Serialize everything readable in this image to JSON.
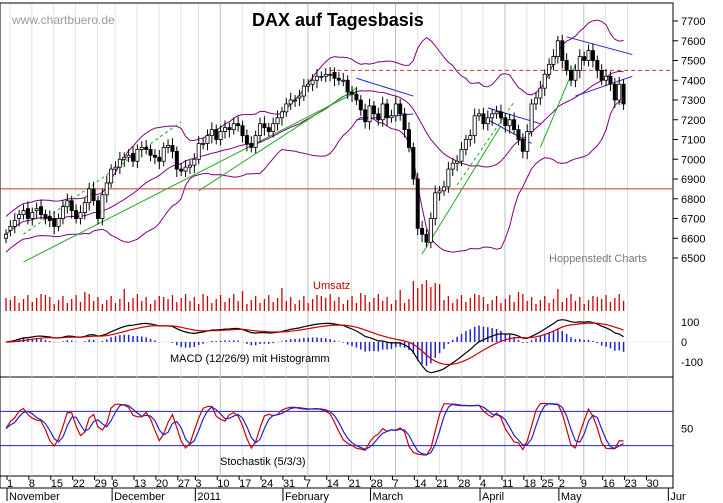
{
  "watermark": "www.chartbuero.de",
  "source_label": "Hoppenstedt Charts",
  "chart_data": [
    {
      "type": "candlestick",
      "title": "DAX auf Tagesbasis",
      "x": [
        "2010-11-01",
        "2010-11-02",
        "2010-11-03",
        "2010-11-04",
        "2010-11-05",
        "2010-11-08",
        "2010-11-09",
        "2010-11-10",
        "2010-11-11",
        "2010-11-12",
        "2010-11-15",
        "2010-11-16",
        "2010-11-17",
        "2010-11-18",
        "2010-11-19",
        "2010-11-22",
        "2010-11-23",
        "2010-11-24",
        "2010-11-25",
        "2010-11-26",
        "2010-11-29",
        "2010-11-30",
        "2010-12-01",
        "2010-12-02",
        "2010-12-03",
        "2010-12-06",
        "2010-12-07",
        "2010-12-08",
        "2010-12-09",
        "2010-12-10",
        "2010-12-13",
        "2010-12-14",
        "2010-12-15",
        "2010-12-16",
        "2010-12-17",
        "2010-12-20",
        "2010-12-21",
        "2010-12-22",
        "2010-12-23",
        "2010-12-27",
        "2010-12-28",
        "2010-12-29",
        "2010-12-30",
        "2011-01-03",
        "2011-01-04",
        "2011-01-05",
        "2011-01-06",
        "2011-01-07",
        "2011-01-10",
        "2011-01-11",
        "2011-01-12",
        "2011-01-13",
        "2011-01-14",
        "2011-01-17",
        "2011-01-18",
        "2011-01-19",
        "2011-01-20",
        "2011-01-21",
        "2011-01-24",
        "2011-01-25",
        "2011-01-26",
        "2011-01-27",
        "2011-01-28",
        "2011-01-31",
        "2011-02-01",
        "2011-02-02",
        "2011-02-03",
        "2011-02-04",
        "2011-02-07",
        "2011-02-08",
        "2011-02-09",
        "2011-02-10",
        "2011-02-11",
        "2011-02-14",
        "2011-02-15",
        "2011-02-16",
        "2011-02-17",
        "2011-02-18",
        "2011-02-21",
        "2011-02-22",
        "2011-02-23",
        "2011-02-24",
        "2011-02-25",
        "2011-02-28",
        "2011-03-01",
        "2011-03-02",
        "2011-03-03",
        "2011-03-04",
        "2011-03-07",
        "2011-03-08",
        "2011-03-09",
        "2011-03-10",
        "2011-03-11",
        "2011-03-14",
        "2011-03-15",
        "2011-03-16",
        "2011-03-17",
        "2011-03-18",
        "2011-03-21",
        "2011-03-22",
        "2011-03-23",
        "2011-03-24",
        "2011-03-25",
        "2011-03-28",
        "2011-03-29",
        "2011-03-30",
        "2011-03-31",
        "2011-04-01",
        "2011-04-04",
        "2011-04-05",
        "2011-04-06",
        "2011-04-07",
        "2011-04-08",
        "2011-04-11",
        "2011-04-12",
        "2011-04-13",
        "2011-04-14",
        "2011-04-15",
        "2011-04-18",
        "2011-04-19",
        "2011-04-20",
        "2011-04-21",
        "2011-04-26",
        "2011-04-27",
        "2011-04-28",
        "2011-04-29",
        "2011-05-02",
        "2011-05-03",
        "2011-05-04",
        "2011-05-05",
        "2011-05-06",
        "2011-05-09",
        "2011-05-10",
        "2011-05-11",
        "2011-05-12",
        "2011-05-13",
        "2011-05-16",
        "2011-05-17",
        "2011-05-18",
        "2011-05-19",
        "2011-05-20",
        "2011-05-23"
      ],
      "close": [
        6620,
        6660,
        6690,
        6720,
        6740,
        6700,
        6730,
        6750,
        6720,
        6700,
        6690,
        6660,
        6700,
        6760,
        6790,
        6740,
        6700,
        6730,
        6780,
        6850,
        6790,
        6700,
        6820,
        6880,
        6950,
        6960,
        7000,
        7010,
        7020,
        6990,
        7050,
        7060,
        7050,
        7020,
        7010,
        6990,
        7060,
        7070,
        7040,
        6950,
        6940,
        6960,
        6970,
        7000,
        7080,
        7080,
        7120,
        7150,
        7100,
        7140,
        7160,
        7150,
        7180,
        7170,
        7120,
        7080,
        7060,
        7120,
        7180,
        7160,
        7140,
        7180,
        7210,
        7240,
        7280,
        7300,
        7300,
        7320,
        7370,
        7380,
        7400,
        7420,
        7420,
        7430,
        7430,
        7410,
        7400,
        7400,
        7340,
        7330,
        7300,
        7250,
        7190,
        7270,
        7230,
        7200,
        7280,
        7210,
        7220,
        7280,
        7230,
        7150,
        7060,
        6900,
        6650,
        6620,
        6580,
        6700,
        6830,
        6840,
        6860,
        6950,
        6980,
        6990,
        7050,
        7100,
        7120,
        7220,
        7230,
        7180,
        7210,
        7230,
        7240,
        7210,
        7170,
        7200,
        7150,
        7100,
        7040,
        7140,
        7280,
        7310,
        7360,
        7430,
        7480,
        7520,
        7600,
        7500,
        7450,
        7400,
        7450,
        7520,
        7500,
        7550,
        7500,
        7450,
        7400,
        7420,
        7380,
        7300,
        7380,
        7280
      ],
      "open": [
        6600,
        6640,
        6660,
        6700,
        6720,
        6750,
        6700,
        6740,
        6760,
        6720,
        6710,
        6700,
        6660,
        6700,
        6760,
        6790,
        6740,
        6700,
        6730,
        6780,
        6850,
        6790,
        6700,
        6820,
        6880,
        6950,
        6960,
        7000,
        7010,
        7030,
        6990,
        7050,
        7060,
        7050,
        7020,
        7010,
        6990,
        7060,
        7070,
        7040,
        6950,
        6940,
        6960,
        6970,
        7000,
        7080,
        7080,
        7120,
        7150,
        7100,
        7140,
        7160,
        7150,
        7180,
        7170,
        7120,
        7080,
        7060,
        7120,
        7180,
        7160,
        7140,
        7180,
        7210,
        7240,
        7280,
        7300,
        7310,
        7320,
        7370,
        7380,
        7400,
        7420,
        7420,
        7430,
        7440,
        7410,
        7400,
        7400,
        7340,
        7330,
        7300,
        7250,
        7190,
        7270,
        7230,
        7200,
        7280,
        7210,
        7220,
        7280,
        7230,
        7150,
        7060,
        6900,
        6650,
        6620,
        6580,
        6700,
        6830,
        6840,
        6860,
        6950,
        6980,
        6990,
        7050,
        7100,
        7120,
        7220,
        7230,
        7180,
        7210,
        7230,
        7240,
        7210,
        7170,
        7200,
        7150,
        7100,
        7040,
        7140,
        7280,
        7310,
        7360,
        7430,
        7480,
        7520,
        7600,
        7500,
        7450,
        7400,
        7450,
        7520,
        7500,
        7550,
        7500,
        7450,
        7400,
        7420,
        7380,
        7300,
        7380
      ],
      "ylim": [
        6400,
        7800
      ],
      "yticks": [
        "6500",
        "6600",
        "6700",
        "6800",
        "6900",
        "7000",
        "7100",
        "7200",
        "7300",
        "7400",
        "7500",
        "7600",
        "7700"
      ],
      "horizontal_lines": [
        {
          "value": 6850,
          "style": "solid",
          "color": "#cc3333"
        },
        {
          "value": 7450,
          "style": "dashed",
          "color": "#cc3333"
        }
      ],
      "bollinger_bands": true,
      "trendlines": "green support lines, blue channel lines"
    },
    {
      "type": "bar",
      "title": "Umsatz",
      "color": "#cc0000"
    },
    {
      "type": "line+bar",
      "title": "MACD (12/26/9) mit Histogramm",
      "yticks": [
        "100",
        "0",
        "-100"
      ],
      "ylim": [
        -150,
        150
      ]
    },
    {
      "type": "line",
      "title": "Stochastik (5/3/3)",
      "yticks": [
        "50"
      ],
      "ylim": [
        0,
        100
      ],
      "reference_lines": [
        20,
        80
      ]
    }
  ],
  "x_axis": {
    "ticks": [
      "1",
      "8",
      "15",
      "22",
      "29",
      "6",
      "13",
      "20",
      "27",
      "3",
      "10",
      "17",
      "24",
      "31",
      "7",
      "14",
      "21",
      "28",
      "7",
      "14",
      "21",
      "28",
      "4",
      "11",
      "18",
      "25",
      "2",
      "9",
      "16",
      "23",
      "30"
    ],
    "months": [
      "November",
      "December",
      "2011",
      "February",
      "March",
      "April",
      "May",
      "Jur"
    ]
  },
  "colors": {
    "candle_up": "#ffffff",
    "candle_down": "#000000",
    "bollinger": "#800080",
    "trend_green": "#22aa22",
    "trend_blue": "#2222cc",
    "volume": "#cc0000",
    "macd": "#000000",
    "signal": "#cc0000",
    "histogram": "#2222cc",
    "stoch_k": "#cc0000",
    "stoch_d": "#2222cc"
  }
}
